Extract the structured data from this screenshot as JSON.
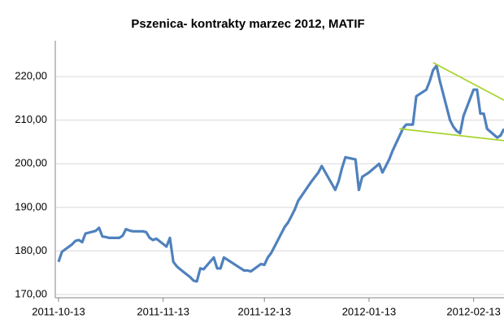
{
  "chart_data": {
    "type": "line",
    "title": "Pszenica- kontrakty marzec 2012, MATIF",
    "x": [
      "2011-10-13",
      "2011-10-14",
      "2011-10-17",
      "2011-10-18",
      "2011-10-19",
      "2011-10-20",
      "2011-10-21",
      "2011-10-24",
      "2011-10-25",
      "2011-10-26",
      "2011-10-27",
      "2011-10-28",
      "2011-10-31",
      "2011-11-01",
      "2011-11-02",
      "2011-11-03",
      "2011-11-04",
      "2011-11-07",
      "2011-11-08",
      "2011-11-09",
      "2011-11-10",
      "2011-11-11",
      "2011-11-14",
      "2011-11-15",
      "2011-11-16",
      "2011-11-17",
      "2011-11-18",
      "2011-11-21",
      "2011-11-22",
      "2011-11-23",
      "2011-11-24",
      "2011-11-25",
      "2011-11-28",
      "2011-11-29",
      "2011-11-30",
      "2011-12-01",
      "2011-12-02",
      "2011-12-05",
      "2011-12-06",
      "2011-12-07",
      "2011-12-08",
      "2011-12-09",
      "2011-12-12",
      "2011-12-13",
      "2011-12-14",
      "2011-12-15",
      "2011-12-16",
      "2011-12-19",
      "2011-12-20",
      "2011-12-21",
      "2011-12-22",
      "2011-12-23",
      "2011-12-27",
      "2011-12-28",
      "2011-12-29",
      "2011-12-30",
      "2012-01-03",
      "2012-01-04",
      "2012-01-05",
      "2012-01-06",
      "2012-01-09",
      "2012-01-10",
      "2012-01-11",
      "2012-01-12",
      "2012-01-13",
      "2012-01-16",
      "2012-01-17",
      "2012-01-18",
      "2012-01-19",
      "2012-01-20",
      "2012-01-23",
      "2012-01-24",
      "2012-01-25",
      "2012-01-26",
      "2012-01-27",
      "2012-01-30",
      "2012-01-31",
      "2012-02-01",
      "2012-02-02",
      "2012-02-03",
      "2012-02-06",
      "2012-02-07",
      "2012-02-08",
      "2012-02-09",
      "2012-02-10",
      "2012-02-13",
      "2012-02-14",
      "2012-02-15",
      "2012-02-16",
      "2012-02-17",
      "2012-02-20",
      "2012-02-21",
      "2012-02-22"
    ],
    "series": [
      {
        "color": "#4f81bd",
        "values": [
          177.5,
          179.8,
          181.5,
          182.3,
          182.5,
          182,
          184,
          184.6,
          185.3,
          183.3,
          183.2,
          183,
          183,
          183.5,
          185,
          184.7,
          184.5,
          184.5,
          184.3,
          183,
          182.5,
          182.8,
          181,
          183,
          177.5,
          176.5,
          175.8,
          174,
          173.2,
          173,
          176,
          175.8,
          178.5,
          176,
          176,
          178.5,
          178,
          176.5,
          176,
          175.5,
          175.5,
          175.3,
          177,
          176.8,
          178.5,
          179.5,
          181,
          185.5,
          186.5,
          188,
          189.5,
          191.5,
          196,
          197,
          198,
          199.5,
          194,
          196,
          199,
          201.5,
          201,
          194,
          197,
          197.5,
          198,
          200,
          198,
          199.5,
          201,
          203,
          208,
          209,
          209,
          209,
          215.5,
          217,
          219,
          221.5,
          222.5,
          219,
          210,
          208.5,
          207.5,
          207,
          211,
          217,
          217,
          211.5,
          211.5,
          208,
          206,
          206.5,
          208
        ]
      }
    ],
    "trendlines": [
      {
        "color": "#a8d42c",
        "x": [
          "2012-02-01",
          "2012-02-22"
        ],
        "values": [
          223.2,
          214.6
        ]
      },
      {
        "color": "#a8d42c",
        "x": [
          "2012-01-22",
          "2012-02-22"
        ],
        "values": [
          208.05,
          205.3
        ]
      }
    ],
    "xlim": [
      "2011-10-13",
      "2012-02-22"
    ],
    "xticks": [
      "2011-10-13",
      "2011-11-13",
      "2011-12-13",
      "2012-01-13",
      "2012-02-13"
    ],
    "ylim": [
      170,
      226
    ],
    "yticks": [
      {
        "value": 170,
        "label": "170,00"
      },
      {
        "value": 180,
        "label": "180,00"
      },
      {
        "value": 190,
        "label": "190,00"
      },
      {
        "value": 200,
        "label": "200,00"
      },
      {
        "value": 210,
        "label": "210,00"
      },
      {
        "value": 220,
        "label": "220,00"
      }
    ],
    "grid": true
  }
}
